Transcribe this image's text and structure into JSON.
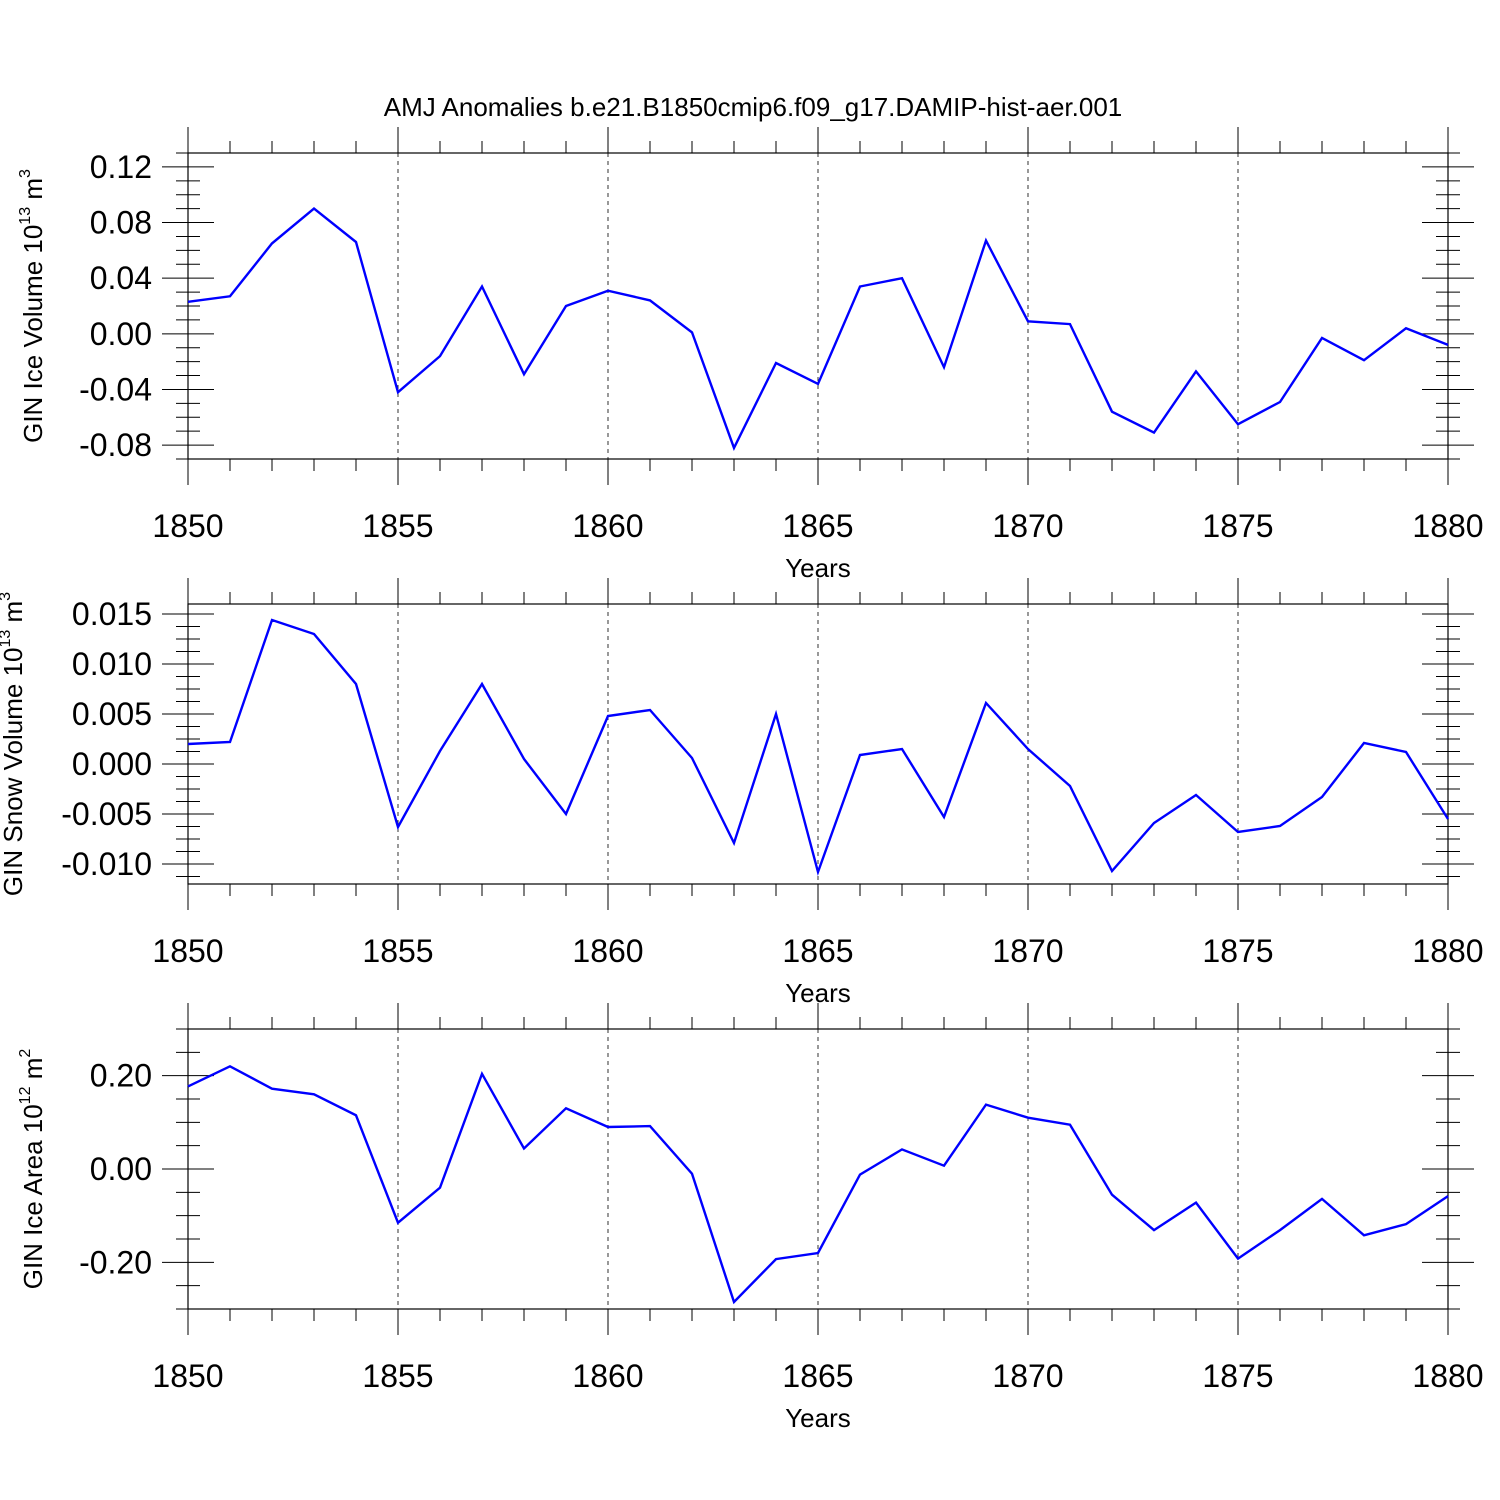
{
  "figure": {
    "title": "AMJ Anomalies b.e21.B1850cmip6.f09_g17.DAMIP-hist-aer.001",
    "line_color": "#0000ff"
  },
  "chart_data": [
    {
      "type": "line",
      "title": "",
      "xlabel": "Years",
      "ylabel": {
        "main": "GIN Ice Volume 10",
        "exponent": "13",
        "unit": " m",
        "unit_exponent": "3"
      },
      "xlim": [
        1850,
        1880
      ],
      "ylim": [
        -0.09,
        0.13
      ],
      "x_ticks": [
        1850,
        1855,
        1860,
        1865,
        1870,
        1875,
        1880
      ],
      "x_tick_labels": [
        "1850",
        "1855",
        "1860",
        "1865",
        "1870",
        "1875",
        "1880"
      ],
      "y_ticks": [
        -0.08,
        -0.04,
        0.0,
        0.04,
        0.08,
        0.12
      ],
      "y_tick_labels": [
        "-0.08",
        "-0.04",
        "0.00",
        "0.04",
        "0.08",
        "0.12"
      ],
      "grid": "x-dashed",
      "series": [
        {
          "name": "GIN Ice Volume",
          "x": [
            1850,
            1851,
            1852,
            1853,
            1854,
            1855,
            1856,
            1857,
            1858,
            1859,
            1860,
            1861,
            1862,
            1863,
            1864,
            1865,
            1866,
            1867,
            1868,
            1869,
            1870,
            1871,
            1872,
            1873,
            1874,
            1875,
            1876,
            1877,
            1878,
            1879,
            1880
          ],
          "values": [
            0.023,
            0.027,
            0.065,
            0.09,
            0.066,
            -0.042,
            -0.016,
            0.034,
            -0.029,
            0.02,
            0.031,
            0.024,
            0.001,
            -0.082,
            -0.021,
            -0.036,
            0.034,
            0.04,
            -0.024,
            0.067,
            0.009,
            0.007,
            -0.056,
            -0.071,
            -0.027,
            -0.065,
            -0.049,
            -0.003,
            -0.019,
            0.004,
            -0.008
          ]
        }
      ]
    },
    {
      "type": "line",
      "title": "",
      "xlabel": "Years",
      "ylabel": {
        "main": "GIN Snow Volume 10",
        "exponent": "13",
        "unit": " m",
        "unit_exponent": "3"
      },
      "xlim": [
        1850,
        1880
      ],
      "ylim": [
        -0.012,
        0.016
      ],
      "x_ticks": [
        1850,
        1855,
        1860,
        1865,
        1870,
        1875,
        1880
      ],
      "x_tick_labels": [
        "1850",
        "1855",
        "1860",
        "1865",
        "1870",
        "1875",
        "1880"
      ],
      "y_ticks": [
        -0.01,
        -0.005,
        0.0,
        0.005,
        0.01,
        0.015
      ],
      "y_tick_labels": [
        "-0.010",
        "-0.005",
        "0.000",
        "0.005",
        "0.010",
        "0.015"
      ],
      "grid": "x-dashed",
      "series": [
        {
          "name": "GIN Snow Volume",
          "x": [
            1850,
            1851,
            1852,
            1853,
            1854,
            1855,
            1856,
            1857,
            1858,
            1859,
            1860,
            1861,
            1862,
            1863,
            1864,
            1865,
            1866,
            1867,
            1868,
            1869,
            1870,
            1871,
            1872,
            1873,
            1874,
            1875,
            1876,
            1877,
            1878,
            1879,
            1880
          ],
          "values": [
            0.002,
            0.0022,
            0.0144,
            0.013,
            0.008,
            -0.0063,
            0.0013,
            0.008,
            0.0005,
            -0.005,
            0.0048,
            0.0054,
            0.0006,
            -0.0079,
            0.005,
            -0.0108,
            0.0009,
            0.0015,
            -0.0053,
            0.0061,
            0.0015,
            -0.0022,
            -0.0107,
            -0.0059,
            -0.0031,
            -0.0068,
            -0.0062,
            -0.0033,
            0.0021,
            0.0012,
            -0.0055
          ]
        }
      ]
    },
    {
      "type": "line",
      "title": "",
      "xlabel": "Years",
      "ylabel": {
        "main": "GIN Ice Area 10",
        "exponent": "12",
        "unit": " m",
        "unit_exponent": "2"
      },
      "xlim": [
        1850,
        1880
      ],
      "ylim": [
        -0.3,
        0.3
      ],
      "x_ticks": [
        1850,
        1855,
        1860,
        1865,
        1870,
        1875,
        1880
      ],
      "x_tick_labels": [
        "1850",
        "1855",
        "1860",
        "1865",
        "1870",
        "1875",
        "1880"
      ],
      "y_ticks": [
        -0.2,
        0.0,
        0.2
      ],
      "y_tick_labels": [
        "-0.20",
        "0.00",
        "0.20"
      ],
      "grid": "x-dashed",
      "series": [
        {
          "name": "GIN Ice Area",
          "x": [
            1850,
            1851,
            1852,
            1853,
            1854,
            1855,
            1856,
            1857,
            1858,
            1859,
            1860,
            1861,
            1862,
            1863,
            1864,
            1865,
            1866,
            1867,
            1868,
            1869,
            1870,
            1871,
            1872,
            1873,
            1874,
            1875,
            1876,
            1877,
            1878,
            1879,
            1880
          ],
          "values": [
            0.177,
            0.22,
            0.172,
            0.16,
            0.115,
            -0.115,
            -0.04,
            0.204,
            0.044,
            0.13,
            0.09,
            0.092,
            -0.01,
            -0.285,
            -0.193,
            -0.18,
            -0.012,
            0.042,
            0.007,
            0.138,
            0.11,
            0.095,
            -0.055,
            -0.131,
            -0.072,
            -0.192,
            -0.131,
            -0.064,
            -0.142,
            -0.118,
            -0.058
          ]
        }
      ]
    }
  ]
}
